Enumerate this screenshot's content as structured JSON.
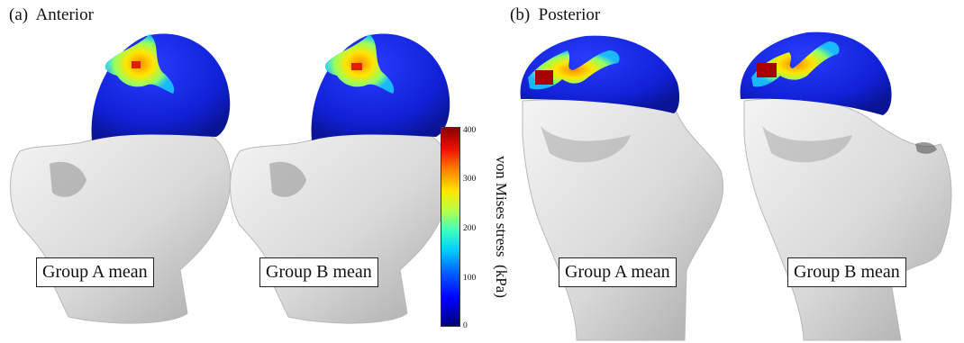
{
  "panels": {
    "anterior": {
      "title": "(a)  Anterior"
    },
    "posterior": {
      "title": "(b)  Posterior"
    }
  },
  "captions": {
    "a_group_a": "Group A mean",
    "a_group_b": "Group B mean",
    "b_group_a": "Group A mean",
    "b_group_b": "Group B mean"
  },
  "colorbar": {
    "label": "von Mises stress  (kPa)",
    "ticks": [
      "400",
      "300",
      "200",
      "100",
      "0"
    ],
    "colors": [
      "#00007a",
      "#0000ff",
      "#00ccff",
      "#b4ff4a",
      "#ffe600",
      "#ff8a00",
      "#8a0000"
    ]
  }
}
